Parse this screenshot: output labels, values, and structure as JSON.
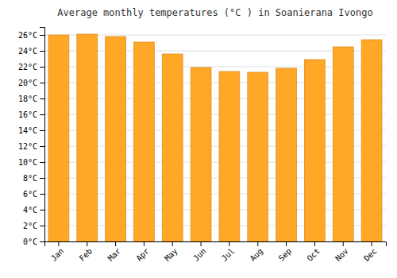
{
  "chart_data": {
    "type": "bar",
    "title": "Average monthly temperatures (°C ) in Soanierana Ivongo",
    "categories": [
      "Jan",
      "Feb",
      "Mar",
      "Apr",
      "May",
      "Jun",
      "Jul",
      "Aug",
      "Sep",
      "Oct",
      "Nov",
      "Dec"
    ],
    "values": [
      26.0,
      26.1,
      25.8,
      25.1,
      23.6,
      21.9,
      21.4,
      21.3,
      21.8,
      22.9,
      24.5,
      25.4
    ],
    "color": "#FFA726",
    "ylim": [
      0,
      27
    ],
    "yticks": [
      {
        "value": 0,
        "label": "0°C"
      },
      {
        "value": 2,
        "label": "2°C"
      },
      {
        "value": 4,
        "label": "4°C"
      },
      {
        "value": 6,
        "label": "6°C"
      },
      {
        "value": 8,
        "label": "8°C"
      },
      {
        "value": 10,
        "label": "10°C"
      },
      {
        "value": 12,
        "label": "12°C"
      },
      {
        "value": 14,
        "label": "14°C"
      },
      {
        "value": 16,
        "label": "16°C"
      },
      {
        "value": 18,
        "label": "18°C"
      },
      {
        "value": 20,
        "label": "20°C"
      },
      {
        "value": 22,
        "label": "22°C"
      },
      {
        "value": 24,
        "label": "24°C"
      },
      {
        "value": 26,
        "label": "26°C"
      }
    ],
    "grid": true
  }
}
